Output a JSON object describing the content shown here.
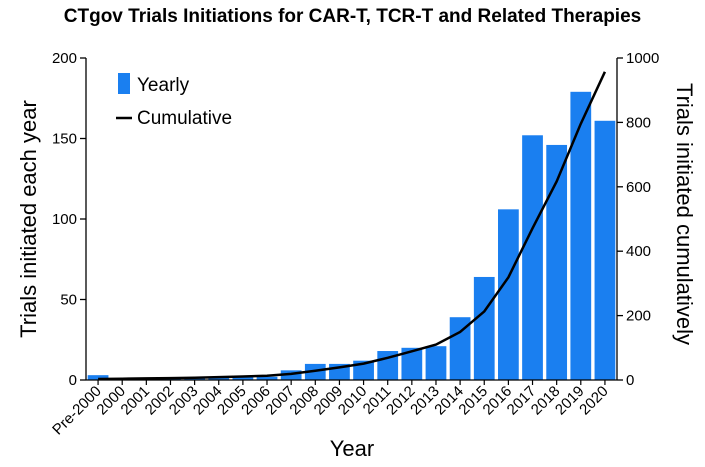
{
  "chart_data": {
    "type": "bar",
    "title": "CTgov Trials Initiations for CAR-T, TCR-T and Related Therapies",
    "xlabel": "Year",
    "ylabel": "Trials initiated each year",
    "y2label": "Trials initiated cumulatively",
    "categories": [
      "Pre-2000",
      "2000",
      "2001",
      "2002",
      "2003",
      "2004",
      "2005",
      "2006",
      "2007",
      "2008",
      "2009",
      "2010",
      "2011",
      "2012",
      "2013",
      "2014",
      "2015",
      "2016",
      "2017",
      "2018",
      "2019",
      "2020"
    ],
    "ylim": [
      0,
      200
    ],
    "y_ticks": [
      0,
      50,
      100,
      150,
      200
    ],
    "y2lim": [
      0,
      1000
    ],
    "y2_ticks": [
      0,
      200,
      400,
      600,
      800,
      1000
    ],
    "legend_position": "top-left",
    "series": [
      {
        "name": "Yearly",
        "kind": "bar",
        "axis": "left",
        "color": "#1a7ff0",
        "values": [
          3,
          1,
          1,
          1,
          1,
          2,
          2,
          2,
          6,
          10,
          10,
          12,
          18,
          20,
          21,
          39,
          64,
          106,
          152,
          146,
          179,
          161
        ]
      },
      {
        "name": "Cumulative",
        "kind": "line",
        "axis": "right",
        "color": "#000000",
        "values": [
          3,
          4,
          5,
          6,
          7,
          9,
          11,
          13,
          19,
          29,
          39,
          51,
          69,
          89,
          110,
          149,
          213,
          319,
          471,
          617,
          796,
          957
        ]
      }
    ],
    "grid": false
  }
}
